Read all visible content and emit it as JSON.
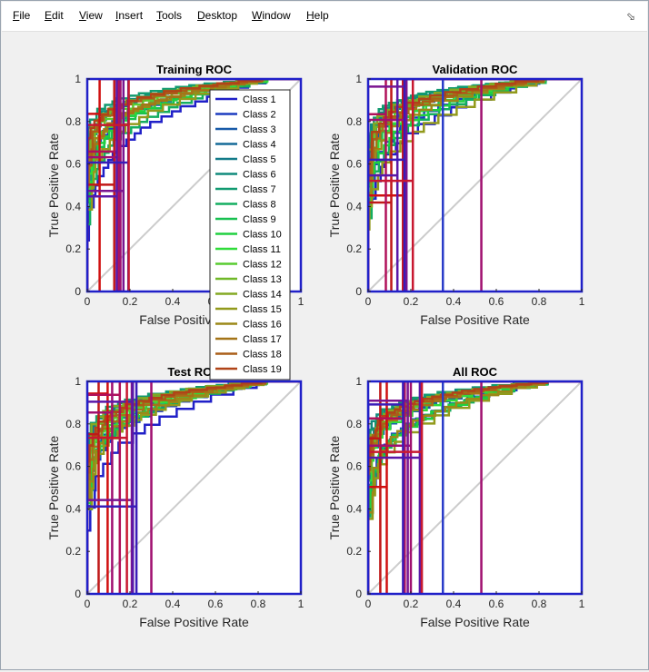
{
  "menu": {
    "items": [
      {
        "label": "File",
        "u": "F",
        "rest": "ile"
      },
      {
        "label": "Edit",
        "u": "E",
        "rest": "dit"
      },
      {
        "label": "View",
        "u": "V",
        "rest": "iew"
      },
      {
        "label": "Insert",
        "u": "I",
        "rest": "nsert"
      },
      {
        "label": "Tools",
        "u": "T",
        "rest": "ools"
      },
      {
        "label": "Desktop",
        "u": "D",
        "rest": "esktop"
      },
      {
        "label": "Window",
        "u": "W",
        "rest": "indow"
      },
      {
        "label": "Help",
        "u": "H",
        "rest": "elp"
      }
    ],
    "dock_icon": "dock-arrow-icon"
  },
  "chart_data": [
    {
      "type": "line",
      "title": "Training ROC",
      "xlabel": "False Positive Rate",
      "ylabel": "True Positive Rate",
      "xlim": [
        0,
        1
      ],
      "ylim": [
        0,
        1
      ],
      "xticks": [
        "0",
        "0.2",
        "0.4",
        "0.6",
        "0.8",
        "1"
      ],
      "yticks": [
        "0",
        "0.2",
        "0.4",
        "0.6",
        "0.8",
        "1"
      ],
      "diagonal": true
    },
    {
      "type": "line",
      "title": "Validation ROC",
      "xlabel": "False Positive Rate",
      "ylabel": "True Positive Rate",
      "xlim": [
        0,
        1
      ],
      "ylim": [
        0,
        1
      ],
      "xticks": [
        "0",
        "0.2",
        "0.4",
        "0.6",
        "0.8",
        "1"
      ],
      "yticks": [
        "0",
        "0.2",
        "0.4",
        "0.6",
        "0.8",
        "1"
      ],
      "diagonal": true
    },
    {
      "type": "line",
      "title": "Test ROC",
      "xlabel": "False Positive Rate",
      "ylabel": "True Positive Rate",
      "xlim": [
        0,
        1
      ],
      "ylim": [
        0,
        1
      ],
      "xticks": [
        "0",
        "0.2",
        "0.4",
        "0.6",
        "0.8",
        "1"
      ],
      "yticks": [
        "0",
        "0.2",
        "0.4",
        "0.6",
        "0.8",
        "1"
      ],
      "diagonal": true
    },
    {
      "type": "line",
      "title": "All ROC",
      "xlabel": "False Positive Rate",
      "ylabel": "True Positive Rate",
      "xlim": [
        0,
        1
      ],
      "ylim": [
        0,
        1
      ],
      "xticks": [
        "0",
        "0.2",
        "0.4",
        "0.6",
        "0.8",
        "1"
      ],
      "yticks": [
        "0",
        "0.2",
        "0.4",
        "0.6",
        "0.8",
        "1"
      ],
      "diagonal": true
    }
  ],
  "legend": {
    "placement": "between-top-panels",
    "entries": [
      {
        "name": "Class 1",
        "color": "#2020c8"
      },
      {
        "name": "Class 2",
        "color": "#1c3cc0"
      },
      {
        "name": "Class 3",
        "color": "#185aa8"
      },
      {
        "name": "Class 4",
        "color": "#156a98"
      },
      {
        "name": "Class 5",
        "color": "#127a88"
      },
      {
        "name": "Class 6",
        "color": "#108a7c"
      },
      {
        "name": "Class 7",
        "color": "#119a70"
      },
      {
        "name": "Class 8",
        "color": "#14ad60"
      },
      {
        "name": "Class 9",
        "color": "#18c050"
      },
      {
        "name": "Class 10",
        "color": "#20d040"
      },
      {
        "name": "Class 11",
        "color": "#30dc3a"
      },
      {
        "name": "Class 12",
        "color": "#58cc30"
      },
      {
        "name": "Class 13",
        "color": "#70b828"
      },
      {
        "name": "Class 14",
        "color": "#84a822"
      },
      {
        "name": "Class 15",
        "color": "#929a1c"
      },
      {
        "name": "Class 16",
        "color": "#9c8818"
      },
      {
        "name": "Class 17",
        "color": "#a47418"
      },
      {
        "name": "Class 18",
        "color": "#aa5e18"
      },
      {
        "name": "Class 19",
        "color": "#b04418"
      }
    ]
  }
}
